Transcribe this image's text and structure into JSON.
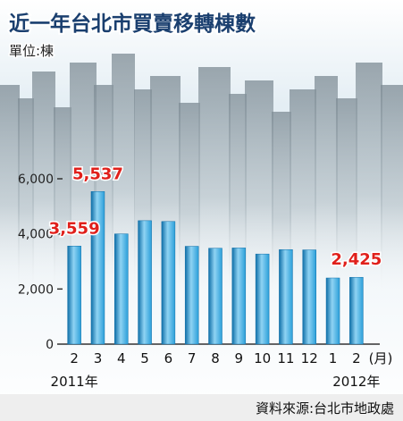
{
  "colors": {
    "bar": "#2b9fd9",
    "bar_light": "#8fd3f3",
    "bar_dark": "#0f6fa8",
    "highlight": "#e0201b",
    "title": "#1a3f6f",
    "source_band": "#eeeeee"
  },
  "chart_data": {
    "type": "bar",
    "title": "近一年台北市買賣移轉棟數",
    "unit_label": "單位:棟",
    "categories": [
      "2",
      "3",
      "4",
      "5",
      "6",
      "7",
      "8",
      "9",
      "10",
      "11",
      "12",
      "1",
      "2"
    ],
    "x_unit": "(月)",
    "year_labels": [
      {
        "text": "2011年",
        "under_category_index": 0
      },
      {
        "text": "2012年",
        "under_category_index": 12
      }
    ],
    "values": [
      3559,
      5537,
      4000,
      4480,
      4450,
      3550,
      3480,
      3490,
      3270,
      3430,
      3420,
      2400,
      2425
    ],
    "data_labels": [
      {
        "index": 0,
        "text": "3,559"
      },
      {
        "index": 1,
        "text": "5,537"
      },
      {
        "index": 12,
        "text": "2,425"
      }
    ],
    "ylim": [
      0,
      6000
    ],
    "yticks": [
      {
        "value": 0,
        "label": "0"
      },
      {
        "value": 2000,
        "label": "2,000"
      },
      {
        "value": 4000,
        "label": "4,000"
      },
      {
        "value": 6000,
        "label": "6,000"
      }
    ],
    "grid": false,
    "legend": "none",
    "source": "資料來源:台北市地政處"
  }
}
